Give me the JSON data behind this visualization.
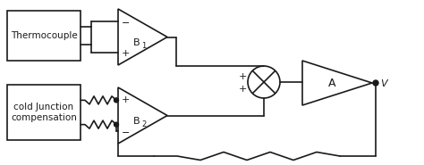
{
  "bg_color": "#ffffff",
  "line_color": "#1a1a1a",
  "line_width": 1.2,
  "thermocouple_label": "Thermocouple",
  "cold_junction_label": "cold Junction\ncompensation",
  "B1_label": "B",
  "B1_sub": "1",
  "B2_label": "B",
  "B2_sub": "2",
  "A_label": "A",
  "Vo_label": "Vₒ"
}
